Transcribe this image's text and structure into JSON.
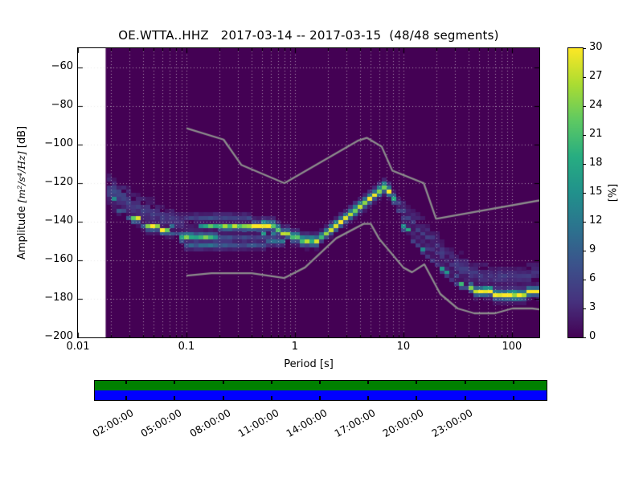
{
  "chart_data": {
    "type": "heatmap",
    "title": "OE.WTTA..HHZ   2017-03-14 -- 2017-03-15  (48/48 segments)",
    "xlabel": "Period [s]",
    "ylabel": {
      "prefix": "Amplitude ",
      "math": "[m²/s⁴/Hz]",
      "suffix": " [dB]"
    },
    "x_scale": "log",
    "xlim": [
      0.01,
      179
    ],
    "ylim": [
      -200,
      -50
    ],
    "data_min_period": 0.018,
    "x_ticks": [
      {
        "value": 0.01,
        "label": "0.01"
      },
      {
        "value": 0.1,
        "label": "0.1"
      },
      {
        "value": 1,
        "label": "1"
      },
      {
        "value": 10,
        "label": "10"
      },
      {
        "value": 100,
        "label": "100"
      }
    ],
    "x_minor_multiples": [
      2,
      3,
      4,
      5,
      6,
      7,
      8,
      9
    ],
    "y_ticks": [
      {
        "value": -60,
        "label": "−60"
      },
      {
        "value": -80,
        "label": "−80"
      },
      {
        "value": -100,
        "label": "−100"
      },
      {
        "value": -120,
        "label": "−120"
      },
      {
        "value": -140,
        "label": "−140"
      },
      {
        "value": -160,
        "label": "−160"
      },
      {
        "value": -180,
        "label": "−180"
      },
      {
        "value": -200,
        "label": "−200"
      }
    ],
    "colorbar": {
      "label": "[%]",
      "min": 0,
      "max": 30,
      "ticks": [
        0,
        3,
        6,
        9,
        12,
        15,
        18,
        21,
        24,
        27,
        30
      ],
      "colormap": "viridis",
      "viridis_stops": [
        [
          0.0,
          "#440154"
        ],
        [
          0.125,
          "#46327e"
        ],
        [
          0.25,
          "#3b528b"
        ],
        [
          0.375,
          "#2c728e"
        ],
        [
          0.5,
          "#21918c"
        ],
        [
          0.625,
          "#27ad81"
        ],
        [
          0.75,
          "#5ec962"
        ],
        [
          0.875,
          "#aadc32"
        ],
        [
          1.0,
          "#fde725"
        ]
      ]
    },
    "colors": {
      "figure_bg": "#ffffff",
      "plot_bg": "#440154",
      "grid": "#e2e2e2",
      "noise_model": "#8c8c8c",
      "spine": "#000000",
      "timeline_green": "#008000",
      "timeline_blue": "#0000ff"
    },
    "profiles": {
      "normal": [
        [
          -4,
          0.05
        ],
        [
          -2,
          0.3
        ],
        [
          0,
          1.0
        ],
        [
          2,
          0.42
        ],
        [
          4,
          0.1
        ]
      ],
      "wide": [
        [
          -7,
          0.25
        ],
        [
          -4.5,
          0.45
        ],
        [
          -2,
          0.75
        ],
        [
          0,
          1.0
        ],
        [
          2,
          0.75
        ],
        [
          4.5,
          0.45
        ],
        [
          7,
          0.25
        ]
      ]
    },
    "psd_bands": [
      {
        "name": "short-period-descent-and-mid-band",
        "profile": "normal",
        "points": [
          [
            0.019,
            -127.5,
            14
          ],
          [
            0.021,
            -129.5,
            30
          ],
          [
            0.024,
            -132,
            28
          ],
          [
            0.029,
            -135,
            26
          ],
          [
            0.036,
            -138.5,
            27
          ],
          [
            0.046,
            -141.5,
            28
          ],
          [
            0.06,
            -143.5,
            26
          ],
          [
            0.075,
            -144.8,
            24
          ],
          [
            0.095,
            -145.5,
            20
          ],
          [
            0.13,
            -145.5,
            16
          ],
          [
            0.2,
            -145.3,
            15
          ],
          [
            0.3,
            -145.3,
            14
          ],
          [
            0.45,
            -145.0,
            14
          ],
          [
            0.6,
            -145.5,
            13
          ],
          [
            0.78,
            -146.8,
            14
          ]
        ]
      },
      {
        "name": "main-mode-ridge",
        "profile": "normal",
        "points": [
          [
            0.14,
            -142.5,
            12
          ],
          [
            0.18,
            -142.0,
            20
          ],
          [
            0.25,
            -141.8,
            25
          ],
          [
            0.35,
            -141.5,
            29
          ],
          [
            0.5,
            -141.3,
            30
          ],
          [
            0.62,
            -142.0,
            26
          ],
          [
            0.72,
            -144.0,
            22
          ],
          [
            0.85,
            -146.5,
            24
          ],
          [
            1.0,
            -148.3,
            26
          ],
          [
            1.25,
            -149.5,
            26
          ],
          [
            1.55,
            -149.5,
            22
          ],
          [
            1.9,
            -146.5,
            24
          ],
          [
            2.4,
            -142.5,
            26
          ],
          [
            3.0,
            -138.5,
            28
          ],
          [
            3.8,
            -133.5,
            29
          ],
          [
            4.7,
            -128.5,
            29
          ],
          [
            5.7,
            -124.0,
            30
          ],
          [
            6.5,
            -122.0,
            30
          ],
          [
            7.2,
            -123.5,
            28
          ],
          [
            8.0,
            -128.0,
            21
          ],
          [
            9.0,
            -134.0,
            16
          ],
          [
            10,
            -139.5,
            18
          ],
          [
            11.5,
            -144.5,
            20
          ],
          [
            13,
            -148.5,
            15
          ],
          [
            15,
            -152.5,
            13
          ],
          [
            18,
            -157.0,
            13
          ],
          [
            22,
            -162.5,
            14
          ],
          [
            27,
            -167.5,
            15
          ],
          [
            33,
            -171.5,
            18
          ],
          [
            40,
            -174.0,
            22
          ],
          [
            50,
            -176.0,
            26
          ],
          [
            65,
            -177.0,
            29
          ],
          [
            85,
            -177.5,
            30
          ],
          [
            110,
            -177.5,
            30
          ],
          [
            140,
            -177.0,
            29
          ],
          [
            160,
            -176.5,
            26
          ],
          [
            179,
            -175.0,
            29
          ]
        ]
      },
      {
        "name": "plateau-lower-band",
        "profile": "normal",
        "points": [
          [
            0.095,
            -148.5,
            22
          ],
          [
            0.14,
            -148.8,
            20
          ],
          [
            0.2,
            -149.0,
            17
          ],
          [
            0.3,
            -149.3,
            14
          ],
          [
            0.45,
            -149.6,
            12
          ],
          [
            0.6,
            -150.0,
            11
          ],
          [
            0.8,
            -150.8,
            9
          ]
        ]
      },
      {
        "name": "plateau-sub-band",
        "profile": "normal",
        "points": [
          [
            0.1,
            -151.8,
            9
          ],
          [
            0.2,
            -152.0,
            9
          ],
          [
            0.35,
            -152.2,
            7
          ],
          [
            0.55,
            -152.5,
            6
          ]
        ]
      },
      {
        "name": "plateau-upper-faint-band",
        "profile": "normal",
        "points": [
          [
            0.1,
            -138.2,
            5
          ],
          [
            0.2,
            -137.8,
            6
          ],
          [
            0.35,
            -138.5,
            6
          ],
          [
            0.5,
            -139.5,
            4
          ]
        ]
      },
      {
        "name": "left-halo",
        "profile": "wide",
        "points": [
          [
            0.019,
            -123.5,
            6
          ],
          [
            0.024,
            -126.5,
            6
          ],
          [
            0.032,
            -130.5,
            5
          ],
          [
            0.045,
            -134.5,
            5
          ],
          [
            0.065,
            -138.0,
            4
          ],
          [
            0.09,
            -140.5,
            4
          ]
        ]
      },
      {
        "name": "long-period-upper-scatter",
        "profile": "wide",
        "points": [
          [
            10,
            -135.5,
            5
          ],
          [
            12,
            -140.5,
            6
          ],
          [
            15,
            -146.5,
            6
          ],
          [
            19,
            -152.0,
            5
          ],
          [
            25,
            -158.0,
            5
          ],
          [
            33,
            -163.0,
            5
          ],
          [
            45,
            -166.5,
            4
          ],
          [
            65,
            -168.0,
            4
          ],
          [
            90,
            -168.5,
            4
          ],
          [
            130,
            -168.0,
            4
          ],
          [
            179,
            -166.5,
            4
          ]
        ]
      },
      {
        "name": "descent-secondary-streak",
        "profile": "normal",
        "points": [
          [
            9,
            -131.0,
            5
          ],
          [
            11,
            -138.0,
            5
          ],
          [
            13.5,
            -144.5,
            5
          ],
          [
            17,
            -150.5,
            4
          ],
          [
            22,
            -156.5,
            4
          ],
          [
            30,
            -162.5,
            3
          ]
        ]
      }
    ],
    "noise_models": {
      "high_noise_model": [
        [
          0.1,
          -91.5
        ],
        [
          0.22,
          -97.4
        ],
        [
          0.32,
          -110.5
        ],
        [
          0.8,
          -120.0
        ],
        [
          3.8,
          -98.0
        ],
        [
          4.6,
          -96.5
        ],
        [
          6.3,
          -101.0
        ],
        [
          7.9,
          -113.5
        ],
        [
          15.4,
          -120.0
        ],
        [
          20.0,
          -138.5
        ],
        [
          354.8,
          -126.0
        ]
      ],
      "low_noise_model": [
        [
          0.1,
          -168.0
        ],
        [
          0.17,
          -166.7
        ],
        [
          0.4,
          -166.7
        ],
        [
          0.8,
          -169.2
        ],
        [
          1.24,
          -163.7
        ],
        [
          2.4,
          -148.6
        ],
        [
          4.3,
          -141.1
        ],
        [
          5.0,
          -141.1
        ],
        [
          6.0,
          -149.0
        ],
        [
          10.0,
          -163.8
        ],
        [
          12.0,
          -166.2
        ],
        [
          15.6,
          -162.1
        ],
        [
          21.9,
          -177.5
        ],
        [
          31.6,
          -185.0
        ],
        [
          45.0,
          -187.5
        ],
        [
          70.0,
          -187.5
        ],
        [
          101.0,
          -185.0
        ],
        [
          154.0,
          -185.0
        ],
        [
          328.0,
          -187.5
        ]
      ]
    },
    "timeline": {
      "span_hours": 28,
      "tick_hours": [
        2,
        5,
        8,
        11,
        14,
        17,
        20,
        23,
        26
      ],
      "labels": [
        {
          "hour": 2,
          "text": "02:00:00"
        },
        {
          "hour": 5,
          "text": "05:00:00"
        },
        {
          "hour": 8,
          "text": "08:00:00"
        },
        {
          "hour": 11,
          "text": "11:00:00"
        },
        {
          "hour": 14,
          "text": "14:00:00"
        },
        {
          "hour": 17,
          "text": "17:00:00"
        },
        {
          "hour": 20,
          "text": "20:00:00"
        },
        {
          "hour": 23,
          "text": "23:00:00"
        }
      ]
    }
  }
}
